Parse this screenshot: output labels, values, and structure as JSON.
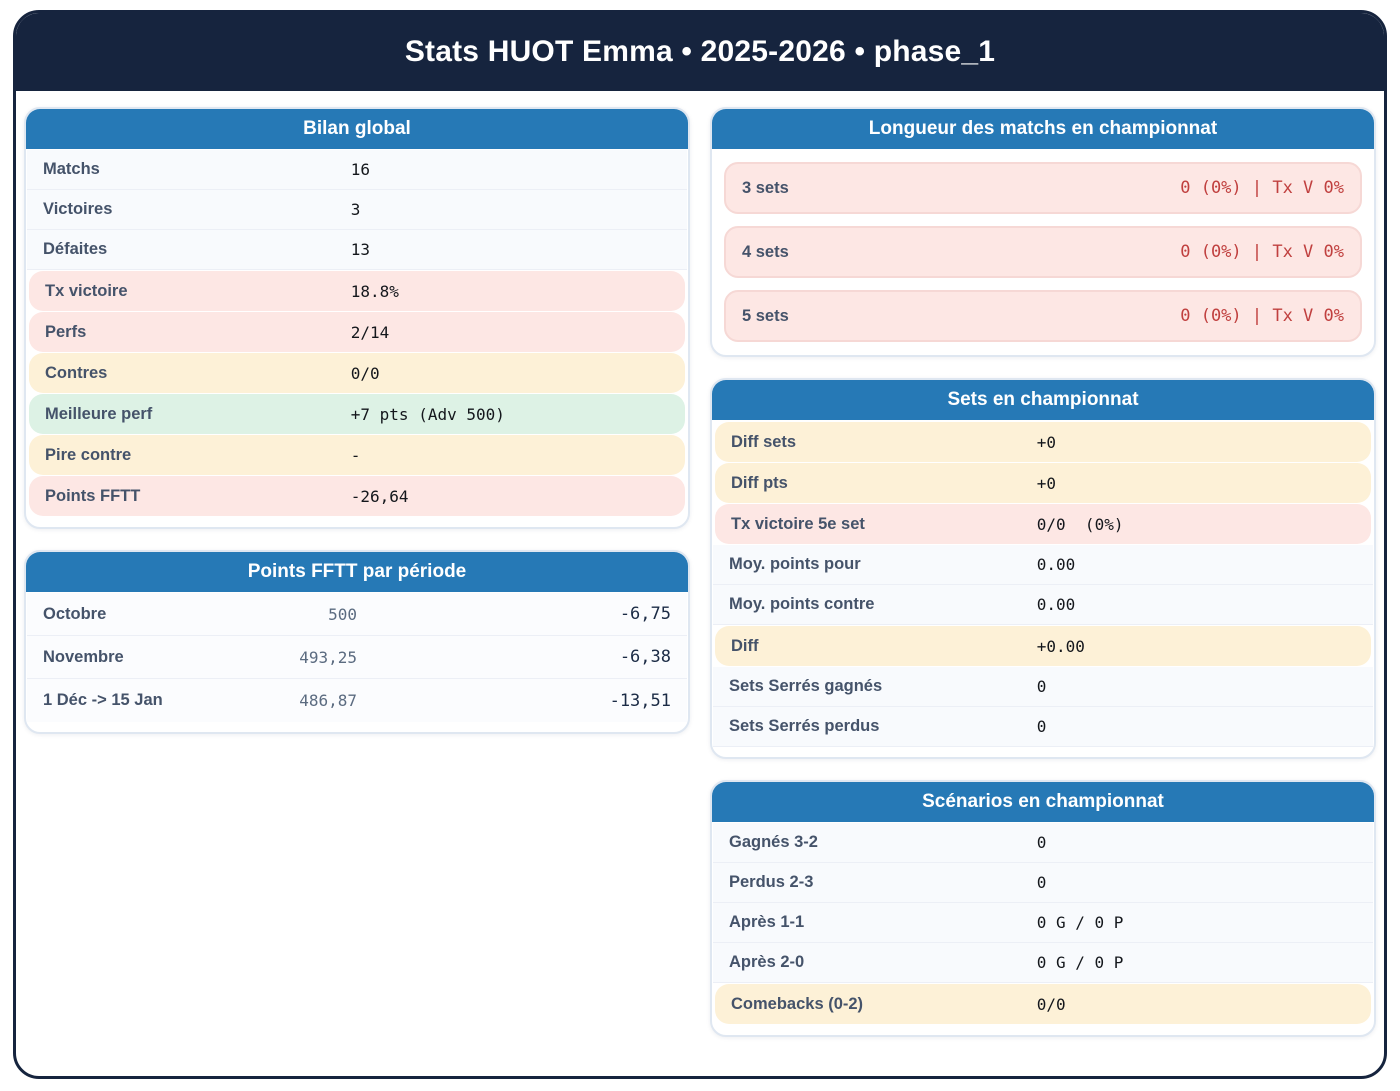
{
  "page": {
    "title": "Stats HUOT Emma • 2025-2026 • phase_1"
  },
  "colors": {
    "navy": "#16243e",
    "blue": "#2679b6",
    "pink": "#fde7e4",
    "pinkBorder": "#f6d8d5",
    "yellow": "#fdf1d7",
    "green": "#ddf2e5",
    "red": "#c0403f"
  },
  "cards": {
    "bilan": {
      "title": "Bilan global",
      "rows": [
        {
          "label": "Matchs",
          "value": "16",
          "tone": "plain"
        },
        {
          "label": "Victoires",
          "value": "3",
          "tone": "plain"
        },
        {
          "label": "Défaites",
          "value": "13",
          "tone": "plain"
        },
        {
          "label": "Tx victoire",
          "value": "18.8%",
          "tone": "pink"
        },
        {
          "label": "Perfs",
          "value": "2/14",
          "tone": "pink"
        },
        {
          "label": "Contres",
          "value": "0/0",
          "tone": "yellow"
        },
        {
          "label": "Meilleure perf",
          "value": "+7 pts (Adv 500)",
          "tone": "green"
        },
        {
          "label": "Pire contre",
          "value": "-",
          "tone": "yellow"
        },
        {
          "label": "Points FFTT",
          "value": "-26,64",
          "tone": "pink"
        }
      ]
    },
    "periodes": {
      "title": "Points FFTT par période",
      "rows": [
        {
          "label": "Octobre",
          "points": "500",
          "delta": "-6,75"
        },
        {
          "label": "Novembre",
          "points": "493,25",
          "delta": "-6,38"
        },
        {
          "label": "1 Déc -> 15 Jan",
          "points": "486,87",
          "delta": "-13,51"
        }
      ]
    },
    "longueur": {
      "title": "Longueur des matchs en championnat",
      "rows": [
        {
          "label": "3 sets",
          "value": "0 (0%) | Tx V 0%"
        },
        {
          "label": "4 sets",
          "value": "0 (0%) | Tx V 0%"
        },
        {
          "label": "5 sets",
          "value": "0 (0%) | Tx V 0%"
        }
      ]
    },
    "sets": {
      "title": "Sets en championnat",
      "rows": [
        {
          "label": "Diff sets",
          "value": "+0",
          "tone": "yellow"
        },
        {
          "label": "Diff pts",
          "value": "+0",
          "tone": "yellow"
        },
        {
          "label": "Tx victoire 5e set",
          "value": "0/0  (0%)",
          "tone": "pink"
        },
        {
          "label": "Moy. points pour",
          "value": "0.00",
          "tone": "plain"
        },
        {
          "label": "Moy. points contre",
          "value": "0.00",
          "tone": "plain"
        },
        {
          "label": "Diff",
          "value": "+0.00",
          "tone": "yellow"
        },
        {
          "label": "Sets Serrés gagnés",
          "value": "0",
          "tone": "plain"
        },
        {
          "label": "Sets Serrés perdus",
          "value": "0",
          "tone": "plain"
        }
      ]
    },
    "scenarios": {
      "title": "Scénarios en championnat",
      "rows": [
        {
          "label": "Gagnés 3-2",
          "value": "0",
          "tone": "plain"
        },
        {
          "label": "Perdus 2-3",
          "value": "0",
          "tone": "plain"
        },
        {
          "label": "Après 1-1",
          "value": "0 G / 0 P",
          "tone": "plain"
        },
        {
          "label": "Après 2-0",
          "value": "0 G / 0 P",
          "tone": "plain"
        },
        {
          "label": "Comebacks (0-2)",
          "value": "0/0",
          "tone": "yellow"
        }
      ]
    }
  }
}
